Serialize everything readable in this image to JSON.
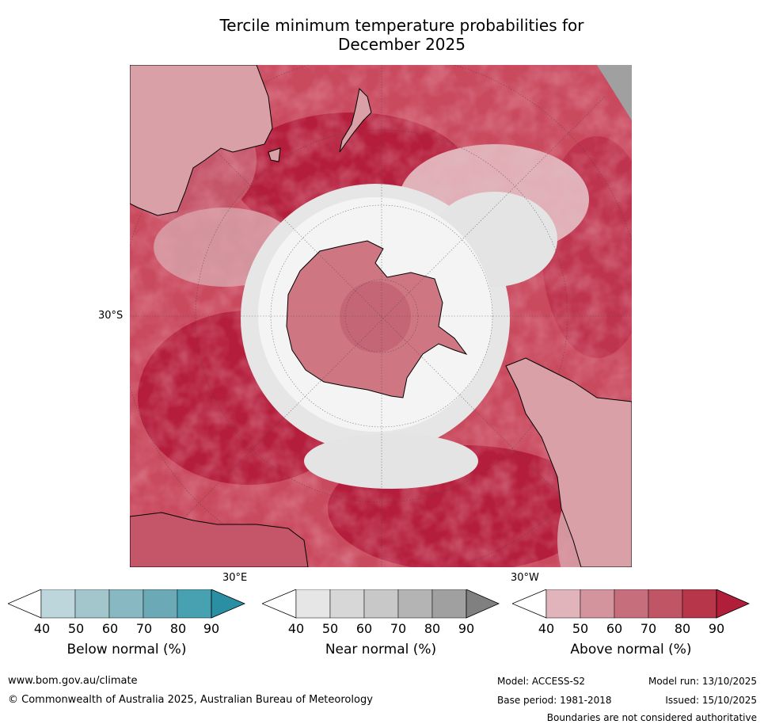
{
  "title_line1": "Tercile minimum temperature probabilities for",
  "title_line2": "December 2025",
  "map": {
    "projection": "south-polar-stereographic",
    "lat_label": "30°S",
    "lon_label_east": "30°E",
    "lon_label_west": "30°W",
    "colors": {
      "above_40": "#e0b4ba",
      "above_60": "#c76e7c",
      "above_80": "#bd3a51",
      "above_90": "#b41e3c",
      "near": "#e4e4e4",
      "below": "#aac8d0",
      "ocean_fill": "#cd4a5e",
      "coast": "#000000"
    }
  },
  "colorbars": [
    {
      "label": "Below normal (%)",
      "ticks": [
        "40",
        "50",
        "60",
        "70",
        "80",
        "90"
      ],
      "colors": [
        "#ffffff",
        "#bcd6dc",
        "#a3c6cd",
        "#88b8c1",
        "#6aa9b5",
        "#48a1b1",
        "#2a8fa3"
      ]
    },
    {
      "label": "Near normal (%)",
      "ticks": [
        "40",
        "50",
        "60",
        "70",
        "80",
        "90"
      ],
      "colors": [
        "#ffffff",
        "#e6e6e6",
        "#d7d7d7",
        "#c8c8c8",
        "#b4b4b4",
        "#a0a0a0",
        "#808080"
      ]
    },
    {
      "label": "Above normal (%)",
      "ticks": [
        "40",
        "50",
        "60",
        "70",
        "80",
        "90"
      ],
      "colors": [
        "#ffffff",
        "#e0b4ba",
        "#d3949d",
        "#c76e7c",
        "#c05566",
        "#b83649",
        "#b01e3a"
      ]
    }
  ],
  "footer": {
    "website": "www.bom.gov.au/climate",
    "copyright": "© Commonwealth of Australia 2025, Australian Bureau of Meteorology",
    "model": "Model: ACCESS-S2",
    "model_run": "Model run: 13/10/2025",
    "base_period": "Base period: 1981-2018",
    "issued": "Issued: 15/10/2025",
    "disclaimer": "Boundaries are not considered authoritative"
  }
}
